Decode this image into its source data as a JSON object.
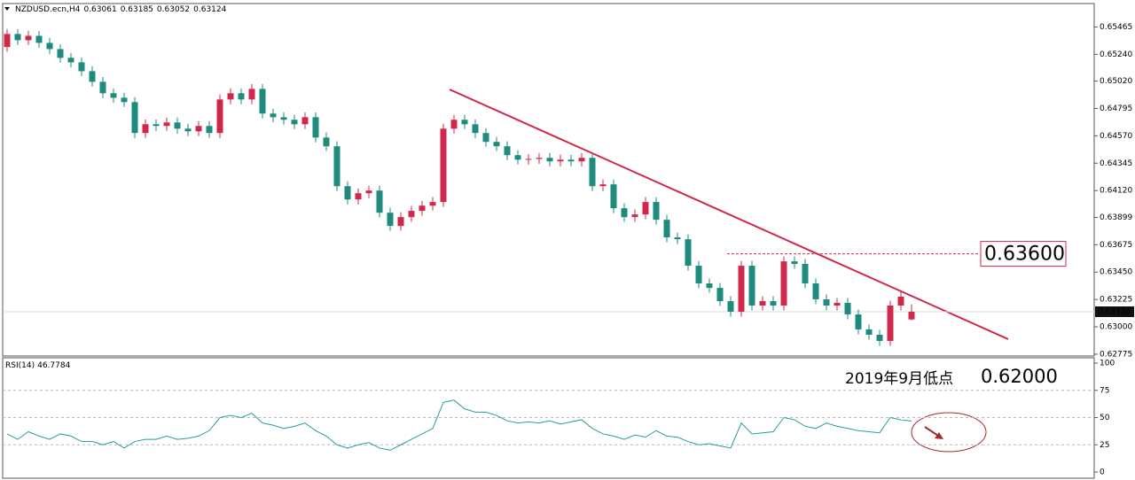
{
  "chart_data": {
    "type": "candlestick",
    "symbol": "NZDUSD.ecn,H4",
    "ohlc": [
      [
        0.653,
        0.65447,
        0.6526,
        0.65407
      ],
      [
        0.65407,
        0.65447,
        0.65316,
        0.65356
      ],
      [
        0.65356,
        0.65432,
        0.65316,
        0.65392
      ],
      [
        0.65392,
        0.65432,
        0.65294,
        0.65334
      ],
      [
        0.65334,
        0.65374,
        0.65243,
        0.65283
      ],
      [
        0.65283,
        0.65323,
        0.65171,
        0.65211
      ],
      [
        0.65211,
        0.65251,
        0.65134,
        0.65174
      ],
      [
        0.65174,
        0.65214,
        0.65061,
        0.65101
      ],
      [
        0.65101,
        0.65141,
        0.64974,
        0.65014
      ],
      [
        0.65014,
        0.65054,
        0.6488,
        0.6492
      ],
      [
        0.6492,
        0.6496,
        0.64843,
        0.64883
      ],
      [
        0.64883,
        0.64923,
        0.64807,
        0.64847
      ],
      [
        0.64847,
        0.64887,
        0.64553,
        0.64593
      ],
      [
        0.64593,
        0.64705,
        0.64553,
        0.64665
      ],
      [
        0.64665,
        0.64705,
        0.64611,
        0.64651
      ],
      [
        0.64651,
        0.6472,
        0.64611,
        0.6468
      ],
      [
        0.6468,
        0.6472,
        0.64589,
        0.64629
      ],
      [
        0.64629,
        0.64669,
        0.64567,
        0.64607
      ],
      [
        0.64607,
        0.64691,
        0.64567,
        0.64651
      ],
      [
        0.64651,
        0.64691,
        0.64553,
        0.64593
      ],
      [
        0.64593,
        0.64909,
        0.64553,
        0.64869
      ],
      [
        0.64869,
        0.6496,
        0.64829,
        0.6492
      ],
      [
        0.6492,
        0.6496,
        0.64829,
        0.64869
      ],
      [
        0.64869,
        0.64996,
        0.64829,
        0.64956
      ],
      [
        0.64956,
        0.64996,
        0.64713,
        0.64753
      ],
      [
        0.64753,
        0.64793,
        0.64683,
        0.64723
      ],
      [
        0.64723,
        0.64763,
        0.64662,
        0.64702
      ],
      [
        0.64702,
        0.64742,
        0.64625,
        0.64665
      ],
      [
        0.64665,
        0.64763,
        0.64625,
        0.64723
      ],
      [
        0.64723,
        0.64763,
        0.64516,
        0.64556
      ],
      [
        0.64556,
        0.64596,
        0.64444,
        0.64484
      ],
      [
        0.64484,
        0.64524,
        0.64116,
        0.64156
      ],
      [
        0.64156,
        0.64196,
        0.64007,
        0.64047
      ],
      [
        0.64047,
        0.64138,
        0.64007,
        0.64098
      ],
      [
        0.64098,
        0.6416,
        0.64058,
        0.6412
      ],
      [
        0.6412,
        0.6416,
        0.63898,
        0.63938
      ],
      [
        0.63938,
        0.63978,
        0.63789,
        0.63829
      ],
      [
        0.63829,
        0.63942,
        0.63789,
        0.63902
      ],
      [
        0.63902,
        0.63993,
        0.63862,
        0.63953
      ],
      [
        0.63953,
        0.64036,
        0.63913,
        0.63996
      ],
      [
        0.63996,
        0.64066,
        0.63956,
        0.64026
      ],
      [
        0.64026,
        0.64669,
        0.63986,
        0.64629
      ],
      [
        0.64629,
        0.64742,
        0.64589,
        0.64702
      ],
      [
        0.64702,
        0.64742,
        0.64625,
        0.64665
      ],
      [
        0.64665,
        0.64705,
        0.64553,
        0.64593
      ],
      [
        0.64593,
        0.64633,
        0.6448,
        0.6452
      ],
      [
        0.6452,
        0.6456,
        0.64444,
        0.64484
      ],
      [
        0.64484,
        0.64524,
        0.64371,
        0.64411
      ],
      [
        0.64411,
        0.64451,
        0.64334,
        0.64374
      ],
      [
        0.64374,
        0.6442,
        0.64334,
        0.6438
      ],
      [
        0.6438,
        0.64429,
        0.6434,
        0.64389
      ],
      [
        0.64389,
        0.64429,
        0.6432,
        0.6436
      ],
      [
        0.6436,
        0.64414,
        0.6432,
        0.64374
      ],
      [
        0.64374,
        0.64414,
        0.6432,
        0.6436
      ],
      [
        0.6436,
        0.64429,
        0.6432,
        0.64389
      ],
      [
        0.64389,
        0.64429,
        0.64116,
        0.64156
      ],
      [
        0.64156,
        0.64211,
        0.64116,
        0.64171
      ],
      [
        0.64171,
        0.64211,
        0.63935,
        0.63975
      ],
      [
        0.63975,
        0.64015,
        0.63862,
        0.63902
      ],
      [
        0.63902,
        0.63964,
        0.63862,
        0.63924
      ],
      [
        0.63924,
        0.64066,
        0.63884,
        0.64026
      ],
      [
        0.64026,
        0.64066,
        0.6384,
        0.6388
      ],
      [
        0.6388,
        0.6392,
        0.63695,
        0.63735
      ],
      [
        0.63735,
        0.63775,
        0.6368,
        0.6372
      ],
      [
        0.6372,
        0.6376,
        0.63462,
        0.63502
      ],
      [
        0.63502,
        0.63542,
        0.63317,
        0.63357
      ],
      [
        0.63357,
        0.63397,
        0.6328,
        0.6332
      ],
      [
        0.6332,
        0.6336,
        0.63171,
        0.63211
      ],
      [
        0.63211,
        0.63251,
        0.63084,
        0.63124
      ],
      [
        0.63124,
        0.63542,
        0.63084,
        0.63502
      ],
      [
        0.63502,
        0.63542,
        0.63135,
        0.63175
      ],
      [
        0.63175,
        0.63251,
        0.63135,
        0.63211
      ],
      [
        0.63211,
        0.63251,
        0.63135,
        0.63175
      ],
      [
        0.63175,
        0.63578,
        0.63135,
        0.63538
      ],
      [
        0.63538,
        0.63578,
        0.63477,
        0.63517
      ],
      [
        0.63517,
        0.63557,
        0.63317,
        0.63357
      ],
      [
        0.63357,
        0.63397,
        0.63186,
        0.63226
      ],
      [
        0.63226,
        0.63266,
        0.63135,
        0.63175
      ],
      [
        0.63175,
        0.63237,
        0.63135,
        0.63197
      ],
      [
        0.63197,
        0.63237,
        0.63062,
        0.63102
      ],
      [
        0.63102,
        0.63142,
        0.62939,
        0.62979
      ],
      [
        0.62979,
        0.63019,
        0.62895,
        0.62935
      ],
      [
        0.62935,
        0.62975,
        0.62844,
        0.62884
      ],
      [
        0.62884,
        0.63215,
        0.62844,
        0.63175
      ],
      [
        0.63175,
        0.63288,
        0.63135,
        0.63248
      ],
      [
        0.63061,
        0.63185,
        0.63052,
        0.63124
      ]
    ],
    "ylim": [
      0.6276,
      0.6565
    ],
    "yticks": [
      0.65465,
      {
        "value": 0.6524,
        "label": "0.65240"
      },
      {
        "value": 0.6502,
        "label": "0.65020"
      },
      0.64795,
      {
        "value": 0.6457,
        "label": "0.64570"
      },
      0.64345,
      {
        "value": 0.6412,
        "label": "0.64120"
      },
      0.63899,
      0.63675,
      {
        "value": 0.6345,
        "label": "0.63450"
      },
      0.63225,
      {
        "value": 0.63,
        "label": "0.63000"
      },
      0.62775
    ],
    "current_price": 0.63124,
    "colors": {
      "up": "#d0284a",
      "down": "#1f8a7e"
    },
    "level": {
      "value": 0.636,
      "label": "0.63600"
    },
    "note": {
      "text": "2019年9月低点",
      "price": "0.62000"
    },
    "rsi": {
      "name": "RSI(14)",
      "color": "#2a9d9a",
      "ylim": [
        0,
        100
      ],
      "yticks": [
        100,
        75,
        50,
        25,
        0
      ],
      "values": [
        35,
        30,
        37,
        33,
        30,
        35,
        33,
        28,
        28,
        25,
        28,
        22,
        28,
        30,
        30,
        33,
        30,
        31,
        33,
        38,
        50,
        52,
        50,
        54,
        45,
        43,
        40,
        42,
        45,
        38,
        33,
        25,
        22,
        25,
        27,
        22,
        20,
        25,
        30,
        35,
        40,
        64,
        66,
        58,
        55,
        55,
        52,
        47,
        45,
        46,
        45,
        47,
        44,
        46,
        48,
        40,
        35,
        33,
        30,
        34,
        32,
        38,
        33,
        32,
        28,
        25,
        26,
        24,
        22,
        45,
        35,
        36,
        37,
        50,
        48,
        42,
        40,
        45,
        42,
        40,
        38,
        37,
        36,
        50,
        48,
        46.7784
      ]
    }
  }
}
